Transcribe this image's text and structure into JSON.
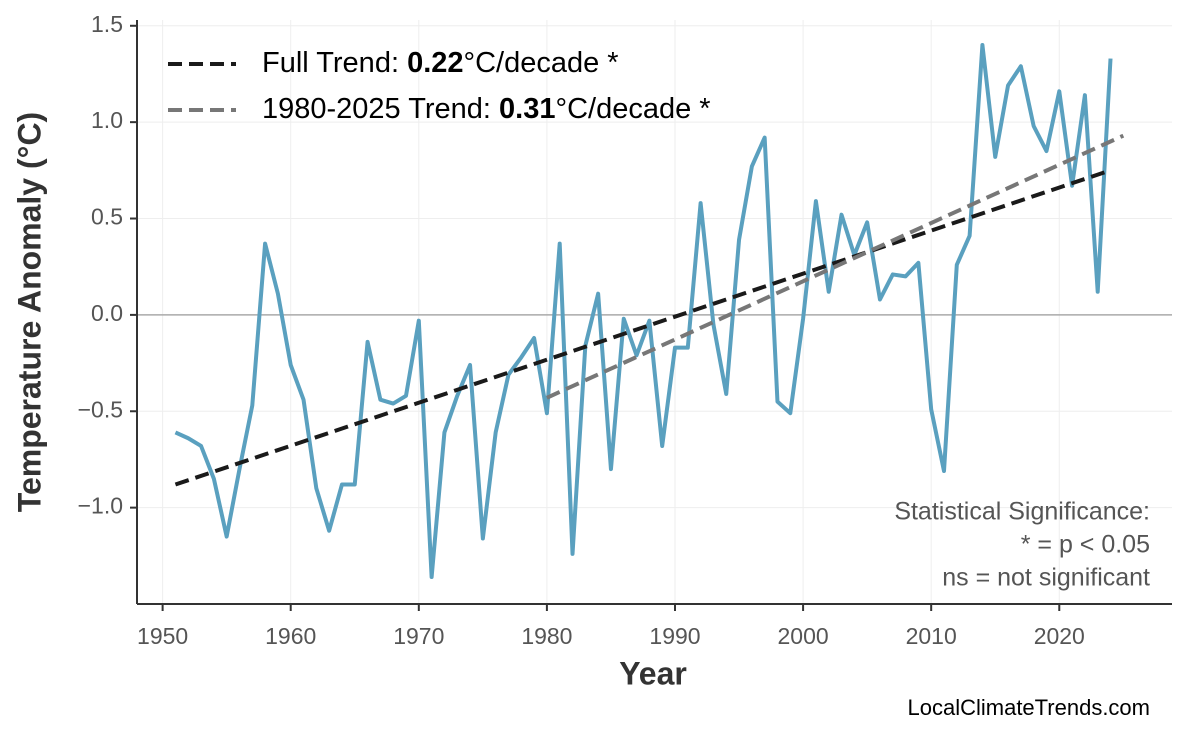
{
  "chart_data": {
    "type": "line",
    "xlabel": "Year",
    "ylabel": "Temperature Anomaly (°C)",
    "x": [
      1951,
      1952,
      1953,
      1954,
      1955,
      1956,
      1957,
      1958,
      1959,
      1960,
      1961,
      1962,
      1963,
      1964,
      1965,
      1966,
      1967,
      1968,
      1969,
      1970,
      1971,
      1972,
      1973,
      1974,
      1975,
      1976,
      1977,
      1978,
      1979,
      1980,
      1981,
      1982,
      1983,
      1984,
      1985,
      1986,
      1987,
      1988,
      1989,
      1990,
      1991,
      1992,
      1993,
      1994,
      1995,
      1996,
      1997,
      1998,
      1999,
      2000,
      2001,
      2002,
      2003,
      2004,
      2005,
      2006,
      2007,
      2008,
      2009,
      2010,
      2011,
      2012,
      2013,
      2014,
      2015,
      2016,
      2017,
      2018,
      2019,
      2020,
      2021,
      2022,
      2023,
      2024
    ],
    "series": [
      {
        "color": "#5aa0bf",
        "values": [
          -0.61,
          -0.64,
          -0.68,
          -0.85,
          -1.15,
          -0.8,
          -0.47,
          0.37,
          0.11,
          -0.26,
          -0.44,
          -0.9,
          -1.12,
          -0.88,
          -0.88,
          -0.14,
          -0.44,
          -0.46,
          -0.42,
          -0.03,
          -1.36,
          -0.61,
          -0.42,
          -0.26,
          -1.16,
          -0.61,
          -0.31,
          -0.22,
          -0.12,
          -0.51,
          0.37,
          -1.24,
          -0.16,
          0.11,
          -0.8,
          -0.02,
          -0.21,
          -0.03,
          -0.68,
          -0.17,
          -0.17,
          0.58,
          -0.05,
          -0.41,
          0.39,
          0.77,
          0.92,
          -0.45,
          -0.51,
          -0.02,
          0.59,
          0.12,
          0.52,
          0.31,
          0.48,
          0.08,
          0.21,
          0.2,
          0.27,
          -0.49,
          -0.81,
          0.26,
          0.41,
          1.4,
          0.82,
          1.19,
          1.29,
          0.98,
          0.85,
          1.16,
          0.67,
          1.14,
          0.12,
          1.33
        ]
      },
      {
        "name": [
          "Full Trend: ",
          "0.22",
          "°C/decade *"
        ],
        "color": "#1a1a1a",
        "dashed": true,
        "x": [
          1951,
          2024
        ],
        "values": [
          -0.88,
          0.75
        ]
      },
      {
        "name": [
          "1980-2025 Trend: ",
          "0.31",
          "°C/decade *"
        ],
        "color": "#777777",
        "dashed": true,
        "x": [
          1980,
          2025
        ],
        "values": [
          -0.43,
          0.93
        ]
      }
    ],
    "hline": 0,
    "xlim": [
      1948,
      2028.8
    ],
    "ylim": [
      -1.5,
      1.53
    ],
    "xticks": [
      1950,
      1960,
      1970,
      1980,
      1990,
      2000,
      2010,
      2020
    ],
    "yticks": [
      {
        "value": -1.0,
        "label": "−1.0"
      },
      {
        "value": -0.5,
        "label": "−0.5"
      },
      {
        "value": 0,
        "label": "0.0"
      },
      0.5,
      {
        "value": 1.0,
        "label": "1.0"
      },
      1.5
    ],
    "grid": true,
    "legend": "upper left",
    "annotation": [
      "Statistical Significance:",
      "* = p < 0.05",
      "ns = not significant"
    ],
    "watermark": "LocalClimateTrends.com"
  }
}
